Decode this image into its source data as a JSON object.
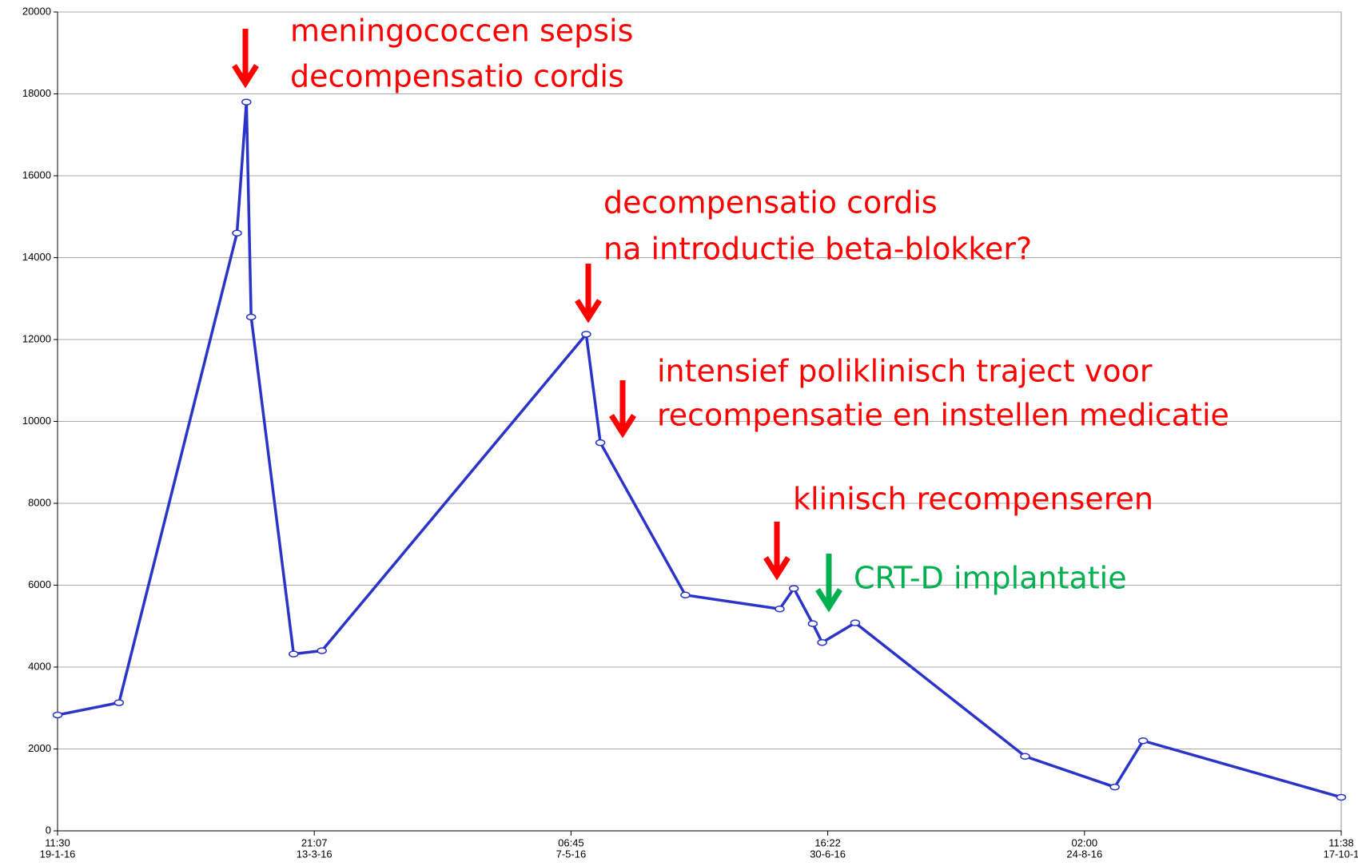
{
  "chart_data": {
    "type": "line",
    "x": [
      "2016-01-19T11:30",
      "2016-02-01T12:00",
      "2016-02-26T12:00",
      "2016-02-28T12:00",
      "2016-02-29T12:00",
      "2016-03-09T12:00",
      "2016-03-15T12:00",
      "2016-05-10T12:00",
      "2016-05-13T12:00",
      "2016-05-31T12:00",
      "2016-06-20T12:00",
      "2016-06-23T12:00",
      "2016-06-27T12:00",
      "2016-06-29T12:00",
      "2016-07-06T12:00",
      "2016-08-11T12:00",
      "2016-08-30T12:00",
      "2016-09-05T12:00",
      "2016-10-17T11:38"
    ],
    "series": [
      {
        "color": "#2a35c8",
        "values": [
          2830,
          3130,
          14600,
          17800,
          12550,
          4320,
          4400,
          12130,
          9480,
          5760,
          5420,
          5920,
          5060,
          4600,
          5080,
          1820,
          1070,
          2200,
          820
        ]
      }
    ],
    "xlim": [
      "2016-01-19T11:30",
      "2016-10-17T11:38"
    ],
    "xticks": [
      {
        "value": "2016-01-19T11:30",
        "label": [
          "11:30",
          "19-1-16"
        ]
      },
      {
        "value": "2016-03-13T21:07",
        "label": [
          "21:07",
          "13-3-16"
        ]
      },
      {
        "value": "2016-05-07T06:45",
        "label": [
          "06:45",
          "7-5-16"
        ]
      },
      {
        "value": "2016-06-30T16:22",
        "label": [
          "16:22",
          "30-6-16"
        ]
      },
      {
        "value": "2016-08-24T02:00",
        "label": [
          "02:00",
          "24-8-16"
        ]
      },
      {
        "value": "2016-10-17T11:38",
        "label": [
          "11:38",
          "17-10-1"
        ]
      }
    ],
    "ylim": [
      0,
      20000
    ],
    "yticks": [
      0,
      2000,
      4000,
      6000,
      8000,
      10000,
      12000,
      14000,
      16000,
      18000,
      20000
    ],
    "grid": true,
    "annotations": [
      "meningococcen sepsis",
      "decompensatio cordis",
      "decompensatio cordis",
      "na introductie beta-blokker?",
      "intensief poliklinisch traject voor",
      "recompensatie en instellen medicatie",
      "klinisch recompenseren",
      "CRT-D implantatie"
    ]
  }
}
